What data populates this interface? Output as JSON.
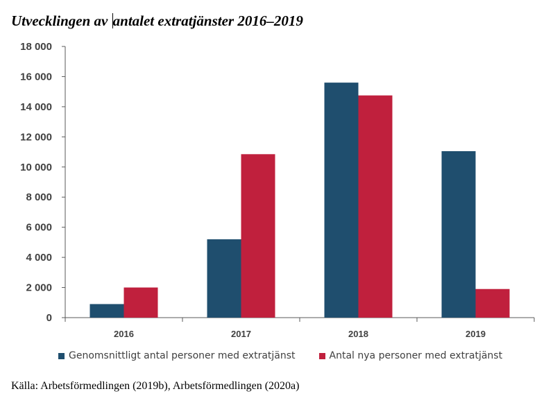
{
  "chart_data": {
    "type": "bar",
    "title": "Utvecklingen av antalet extratjänster 2016–2019",
    "title_parts": [
      "Utvecklingen av ",
      "antalet extratjänster 2016–2019"
    ],
    "categories": [
      "2016",
      "2017",
      "2018",
      "2019"
    ],
    "series": [
      {
        "name": "Genomsnittligt antal personer med extratjänst",
        "color": "#1f4e6e",
        "values": [
          900,
          5200,
          15600,
          11050
        ]
      },
      {
        "name": "Antal nya personer med extratjänst",
        "color": "#c0203d",
        "values": [
          2000,
          10850,
          14750,
          1900
        ]
      }
    ],
    "yticks": [
      "0",
      "2 000",
      "4 000",
      "6 000",
      "8 000",
      "10 000",
      "12 000",
      "14 000",
      "16 000",
      "18 000"
    ],
    "ylim": [
      0,
      18000
    ],
    "xlabel": "",
    "ylabel": "",
    "grid": false,
    "legend_position": "bottom"
  },
  "source": "Källa: Arbetsförmedlingen (2019b), Arbetsförmedlingen (2020a)"
}
